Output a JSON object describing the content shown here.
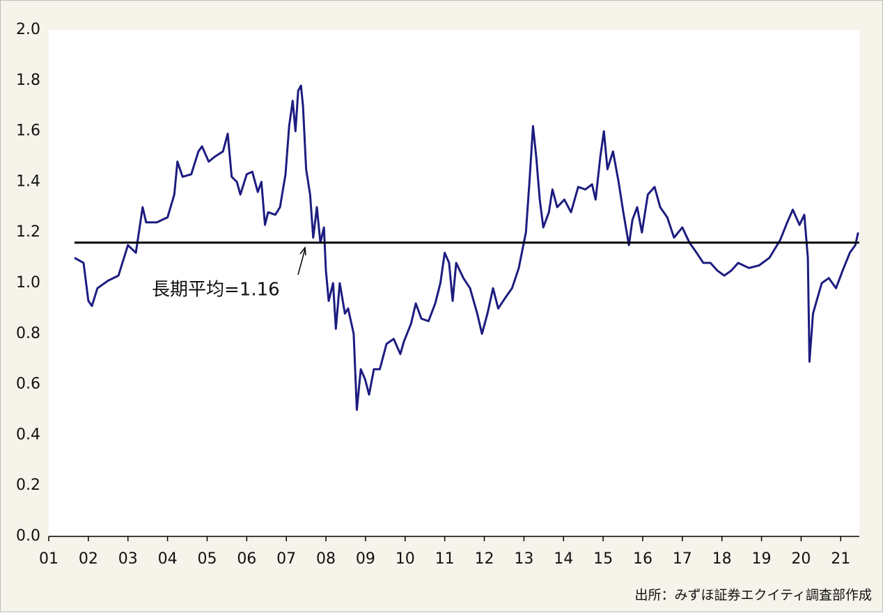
{
  "chart_data": {
    "type": "line",
    "x": [
      1.65,
      1.88,
      2.0,
      2.09,
      2.23,
      2.5,
      2.76,
      3.0,
      3.2,
      3.37,
      3.46,
      3.73,
      4.0,
      4.17,
      4.25,
      4.38,
      4.6,
      4.78,
      4.87,
      5.04,
      5.2,
      5.4,
      5.52,
      5.62,
      5.75,
      5.84,
      6.0,
      6.14,
      6.28,
      6.37,
      6.46,
      6.54,
      6.72,
      6.84,
      6.98,
      7.07,
      7.16,
      7.23,
      7.3,
      7.37,
      7.42,
      7.5,
      7.6,
      7.68,
      7.77,
      7.86,
      7.95,
      8.0,
      8.07,
      8.18,
      8.25,
      8.35,
      8.48,
      8.56,
      8.7,
      8.78,
      8.88,
      8.99,
      9.09,
      9.21,
      9.36,
      9.53,
      9.71,
      9.88,
      9.97,
      10.15,
      10.27,
      10.41,
      10.59,
      10.76,
      10.89,
      11.0,
      11.11,
      11.2,
      11.29,
      11.47,
      11.64,
      11.82,
      11.94,
      12.08,
      12.22,
      12.35,
      12.52,
      12.7,
      12.87,
      13.05,
      13.14,
      13.23,
      13.31,
      13.4,
      13.49,
      13.63,
      13.72,
      13.84,
      14.02,
      14.19,
      14.37,
      14.55,
      14.72,
      14.81,
      14.93,
      15.02,
      15.11,
      15.25,
      15.39,
      15.51,
      15.65,
      15.74,
      15.86,
      15.98,
      16.13,
      16.3,
      16.44,
      16.62,
      16.79,
      17.0,
      17.18,
      17.36,
      17.53,
      17.71,
      17.88,
      18.06,
      18.24,
      18.41,
      18.68,
      18.94,
      19.2,
      19.47,
      19.65,
      19.79,
      19.96,
      20.08,
      20.17,
      20.21,
      20.3,
      20.52,
      20.7,
      20.88,
      21.05,
      21.23,
      21.37,
      21.44
    ],
    "series": [
      {
        "color": "#1c1c80",
        "values": [
          1.1,
          1.08,
          0.93,
          0.91,
          0.98,
          1.01,
          1.03,
          1.15,
          1.12,
          1.3,
          1.24,
          1.24,
          1.26,
          1.35,
          1.48,
          1.42,
          1.43,
          1.52,
          1.54,
          1.48,
          1.5,
          1.52,
          1.59,
          1.42,
          1.4,
          1.35,
          1.43,
          1.44,
          1.36,
          1.4,
          1.23,
          1.28,
          1.27,
          1.3,
          1.43,
          1.62,
          1.72,
          1.6,
          1.76,
          1.78,
          1.7,
          1.45,
          1.35,
          1.18,
          1.3,
          1.16,
          1.22,
          1.05,
          0.93,
          1.0,
          0.82,
          1.0,
          0.88,
          0.9,
          0.8,
          0.5,
          0.66,
          0.62,
          0.56,
          0.66,
          0.66,
          0.76,
          0.78,
          0.72,
          0.77,
          0.84,
          0.92,
          0.86,
          0.85,
          0.92,
          1.0,
          1.12,
          1.08,
          0.93,
          1.08,
          1.02,
          0.98,
          0.88,
          0.8,
          0.88,
          0.98,
          0.9,
          0.94,
          0.98,
          1.06,
          1.2,
          1.4,
          1.62,
          1.5,
          1.33,
          1.22,
          1.28,
          1.37,
          1.3,
          1.33,
          1.28,
          1.38,
          1.37,
          1.39,
          1.33,
          1.5,
          1.6,
          1.45,
          1.52,
          1.4,
          1.28,
          1.15,
          1.25,
          1.3,
          1.2,
          1.35,
          1.38,
          1.3,
          1.26,
          1.18,
          1.22,
          1.16,
          1.12,
          1.08,
          1.08,
          1.05,
          1.03,
          1.05,
          1.08,
          1.06,
          1.07,
          1.1,
          1.17,
          1.24,
          1.29,
          1.23,
          1.27,
          1.1,
          0.69,
          0.88,
          1.0,
          1.02,
          0.98,
          1.05,
          1.12,
          1.15,
          1.2
        ]
      }
    ],
    "xlim": [
      1,
      21.47
    ],
    "xticks": [
      {
        "value": 1,
        "label": "01"
      },
      {
        "value": 2,
        "label": "02"
      },
      {
        "value": 3,
        "label": "03"
      },
      {
        "value": 4,
        "label": "04"
      },
      {
        "value": 5,
        "label": "05"
      },
      {
        "value": 6,
        "label": "06"
      },
      {
        "value": 7,
        "label": "07"
      },
      {
        "value": 8,
        "label": "08"
      },
      {
        "value": 9,
        "label": "09"
      },
      {
        "value": 10,
        "label": "10"
      },
      {
        "value": 11,
        "label": "11"
      },
      {
        "value": 12,
        "label": "12"
      },
      {
        "value": 13,
        "label": "13"
      },
      {
        "value": 14,
        "label": "14"
      },
      {
        "value": 15,
        "label": "15"
      },
      {
        "value": 16,
        "label": "16"
      },
      {
        "value": 17,
        "label": "17"
      },
      {
        "value": 18,
        "label": "18"
      },
      {
        "value": 19,
        "label": "19"
      },
      {
        "value": 20,
        "label": "20"
      },
      {
        "value": 21,
        "label": "21"
      }
    ],
    "ylim": [
      0,
      2
    ],
    "yticks": [
      {
        "value": 0,
        "label": "0.0"
      },
      0.2,
      0.4,
      0.6,
      0.8,
      {
        "value": 1,
        "label": "1.0"
      },
      1.2,
      1.4,
      1.6,
      1.8,
      {
        "value": 2,
        "label": "2.0"
      }
    ],
    "reference_line": {
      "value": 1.16,
      "label": "長期平均=1.16",
      "color": "#000000"
    },
    "source": "出所：みずほ証券エクイティ調査部作成"
  }
}
